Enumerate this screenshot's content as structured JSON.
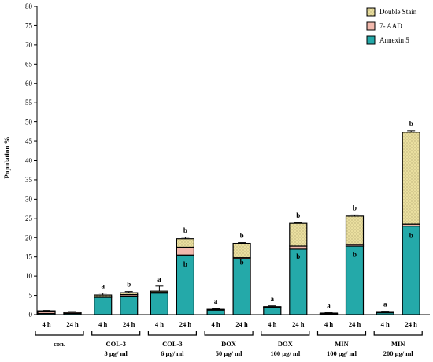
{
  "chart_data": {
    "type": "bar",
    "stacked": true,
    "ylabel": "Population %",
    "ylim": [
      0,
      80
    ],
    "yticks": [
      0,
      5,
      10,
      15,
      20,
      25,
      30,
      35,
      40,
      45,
      50,
      55,
      60,
      65,
      70,
      75,
      80
    ],
    "legend": {
      "placement": "top-right",
      "entries": [
        "Double Stain",
        "7- AAD",
        "Annexin 5"
      ]
    },
    "series_colors": {
      "Annexin 5": "#24a9a9",
      "7- AAD": "#f2b9ad",
      "Double Stain": "#eadf9f"
    },
    "categories": [
      "4 h",
      "24 h",
      "4 h",
      "24 h",
      "4 h",
      "24 h",
      "4 h",
      "24 h",
      "4 h",
      "24 h",
      "4 h",
      "24 h",
      "4 h",
      "24 h"
    ],
    "groups": [
      {
        "label": "con.",
        "sublabel": ""
      },
      {
        "label": "COL-3",
        "sublabel": "3 µg/ ml"
      },
      {
        "label": "COL-3",
        "sublabel": "6 µg/ ml"
      },
      {
        "label": "DOX",
        "sublabel": "50 µg/ ml"
      },
      {
        "label": "DOX",
        "sublabel": "100 µg/ ml"
      },
      {
        "label": "MIN",
        "sublabel": "100 µg/ ml"
      },
      {
        "label": "MIN",
        "sublabel": "200 µg/ ml"
      }
    ],
    "series": [
      {
        "name": "Annexin 5",
        "values": [
          0.3,
          0.3,
          4.5,
          4.8,
          5.6,
          15.5,
          1.2,
          14.5,
          1.9,
          17.0,
          0.2,
          17.8,
          0.5,
          23.0
        ]
      },
      {
        "name": "7- AAD",
        "values": [
          0.6,
          0.3,
          0.2,
          0.4,
          0.2,
          2.0,
          0.1,
          0.3,
          0.1,
          0.8,
          0.1,
          0.4,
          0.2,
          0.5
        ]
      },
      {
        "name": "Double Stain",
        "values": [
          0.1,
          0.1,
          0.4,
          0.5,
          0.3,
          2.2,
          0.1,
          3.7,
          0.1,
          5.9,
          0.1,
          7.4,
          0.1,
          23.8
        ]
      }
    ],
    "error_bars": [
      0.1,
      0.1,
      0.5,
      0.3,
      1.3,
      0.4,
      0.2,
      0.2,
      0.2,
      0.2,
      0.1,
      0.3,
      0.1,
      0.4
    ],
    "annotations_top": [
      "",
      "",
      "a",
      "b",
      "a",
      "b",
      "a",
      "b",
      "a",
      "b",
      "a",
      "b",
      "a",
      "b"
    ],
    "annotations_inner": [
      "",
      "",
      "",
      "",
      "",
      "b",
      "",
      "b",
      "",
      "b",
      "",
      "b",
      "",
      "b"
    ],
    "inner_annotation_values": [
      null,
      null,
      null,
      null,
      null,
      12.5,
      null,
      13.0,
      null,
      14.5,
      null,
      15.0,
      null,
      20.0
    ]
  }
}
